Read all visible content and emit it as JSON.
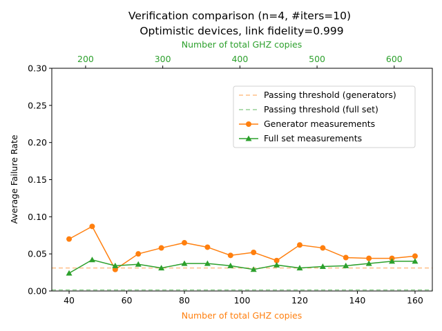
{
  "chart_data": {
    "type": "line",
    "title": "Verification comparison (n=4, #iters=10)",
    "subtitle": "Optimistic devices, link fidelity=0.999",
    "xlabel": "Number of total GHZ copies",
    "x2label": "Number of total GHZ copies",
    "ylabel": "Average Failure Rate",
    "xlim": [
      34,
      166
    ],
    "x2lim": [
      156.2,
      649.4
    ],
    "ylim": [
      0,
      0.3
    ],
    "xticks": [
      40,
      60,
      80,
      100,
      120,
      140,
      160
    ],
    "x2ticks": [
      200,
      300,
      400,
      500,
      600
    ],
    "yticks": [
      "0.00",
      "0.05",
      "0.10",
      "0.15",
      "0.20",
      "0.25",
      "0.30"
    ],
    "legend_position": "upper right",
    "colors": {
      "generators": "#ff7f0e",
      "full_set": "#2ca02c",
      "threshold_generators": "#ffbf87",
      "threshold_full_set": "#96d096"
    },
    "thresholds": [
      {
        "name": "Passing threshold (generators)",
        "y": 0.031,
        "color": "#ffbf87"
      },
      {
        "name": "Passing threshold (full set)",
        "y": 0.0015,
        "color": "#96d096"
      }
    ],
    "x": [
      40,
      48,
      56,
      64,
      72,
      80,
      88,
      96,
      104,
      112,
      120,
      128,
      136,
      144,
      152,
      160
    ],
    "series": [
      {
        "name": "Generator measurements",
        "color": "#ff7f0e",
        "marker": "circle",
        "values": [
          0.07,
          0.087,
          0.029,
          0.05,
          0.058,
          0.065,
          0.059,
          0.048,
          0.052,
          0.041,
          0.062,
          0.058,
          0.045,
          0.044,
          0.044,
          0.047
        ]
      },
      {
        "name": "Full set measurements",
        "color": "#2ca02c",
        "marker": "triangle",
        "values": [
          0.024,
          0.042,
          0.034,
          0.036,
          0.031,
          0.037,
          0.037,
          0.034,
          0.029,
          0.035,
          0.031,
          0.033,
          0.034,
          0.037,
          0.04,
          0.04
        ]
      }
    ]
  }
}
